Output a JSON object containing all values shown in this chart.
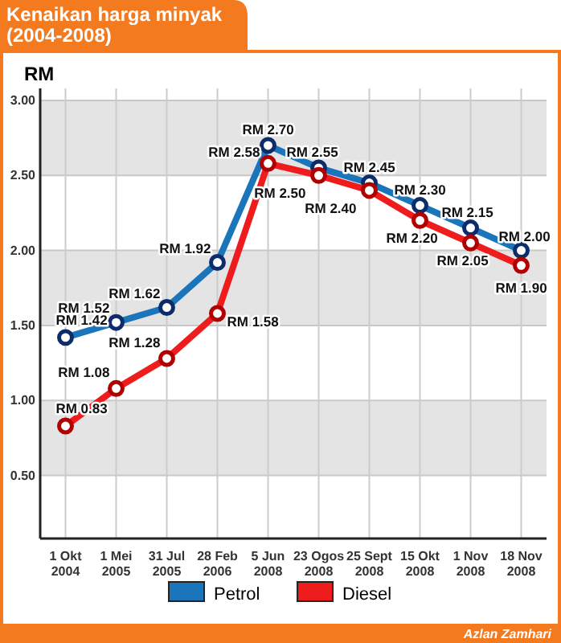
{
  "chart_data": {
    "type": "line",
    "title": "Kenaikan harga minyak\n(2004-2008)",
    "ylabel": "RM",
    "categories": [
      "1 Okt\n2004",
      "1 Mei\n2005",
      "31 Jul\n2005",
      "28 Feb\n2006",
      "5 Jun\n2008",
      "23 Ogos\n2008",
      "25 Sept\n2008",
      "15 Okt\n2008",
      "1 Nov\n2008",
      "18 Nov\n2008"
    ],
    "series": [
      {
        "name": "Petrol",
        "color": "#1a75bb",
        "values": [
          1.42,
          1.52,
          1.62,
          1.92,
          2.7,
          2.55,
          2.45,
          2.3,
          2.15,
          2.0
        ],
        "value_labels": [
          "RM 1.42",
          "RM 1.52",
          "RM 1.62",
          "RM 1.92",
          "RM 2.70",
          "RM 2.55",
          "RM 2.45",
          "RM 2.30",
          "RM 2.15",
          "RM 2.00"
        ]
      },
      {
        "name": "Diesel",
        "color": "#ee1c1c",
        "values": [
          0.83,
          1.08,
          1.28,
          1.58,
          2.58,
          2.5,
          2.4,
          2.2,
          2.05,
          1.9
        ],
        "value_labels": [
          "RM 0.83",
          "RM 1.08",
          "RM 1.28",
          "RM 1.58",
          "RM 2.58",
          "RM 2.50",
          "RM 2.40",
          "RM 2.20",
          "RM 2.05",
          "RM 1.90"
        ]
      }
    ],
    "ylim": [
      0.08,
      3.08
    ],
    "yticks": [
      {
        "value": 0.5,
        "label": "0.50"
      },
      {
        "value": 1,
        "label": "1.00"
      },
      {
        "value": 1.5,
        "label": "1.50"
      },
      {
        "value": 2,
        "label": "2.00"
      },
      {
        "value": 2.5,
        "label": "2.50"
      },
      {
        "value": 3,
        "label": "3.00"
      }
    ],
    "grid": true,
    "legend": "bottom",
    "marker": "circle",
    "line_style": "solid",
    "annotations": [
      "Azlan Zamhari"
    ]
  }
}
